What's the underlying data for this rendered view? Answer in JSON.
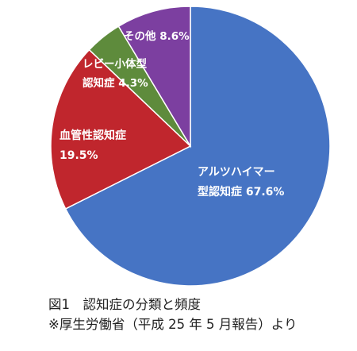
{
  "chart_data": {
    "type": "pie",
    "slices": [
      {
        "lines": [
          "アルツハイマー",
          "型認知症 67.6%"
        ],
        "value": 67.6,
        "color": "#4674c4"
      },
      {
        "lines": [
          "血管性認知症",
          "19.5%"
        ],
        "value": 19.5,
        "color": "#c0262d"
      },
      {
        "lines": [
          "レビー小体型",
          "認知症 4.3%"
        ],
        "value": 4.3,
        "color": "#5e8b3c"
      },
      {
        "lines": [
          "その他 8.6%"
        ],
        "value": 8.6,
        "color": "#7c3fa0"
      }
    ]
  },
  "caption": {
    "line1": "図1　認知症の分類と頻度",
    "line2": "※厚生労働省（平成 25 年 5 月報告）より"
  }
}
